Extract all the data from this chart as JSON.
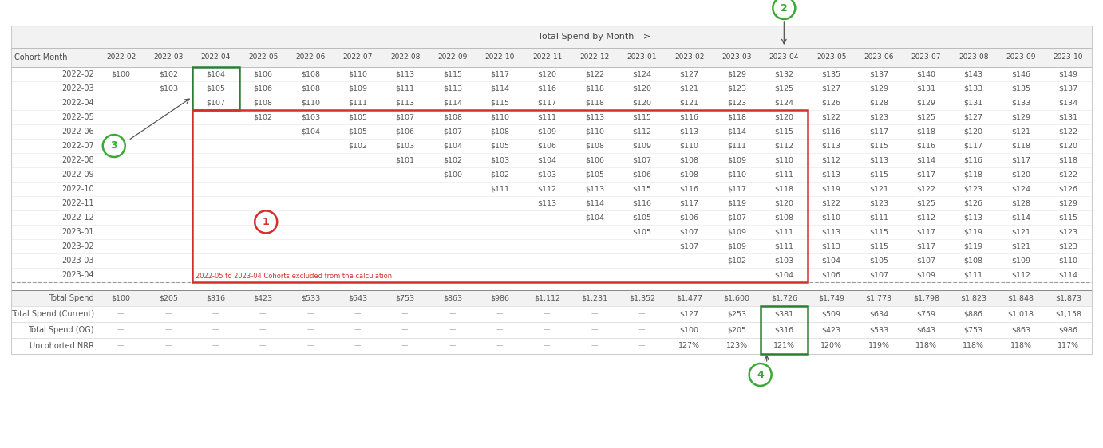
{
  "title_row": "Total Spend by Month -->",
  "col_header": [
    "Cohort Month",
    "2022-02",
    "2022-03",
    "2022-04",
    "2022-05",
    "2022-06",
    "2022-07",
    "2022-08",
    "2022-09",
    "2022-10",
    "2022-11",
    "2022-12",
    "2023-01",
    "2023-02",
    "2023-03",
    "2023-04",
    "2023-05",
    "2023-06",
    "2023-07",
    "2023-08",
    "2023-09",
    "2023-10"
  ],
  "row_labels": [
    "2022-02",
    "2022-03",
    "2022-04",
    "2022-05",
    "2022-06",
    "2022-07",
    "2022-08",
    "2022-09",
    "2022-10",
    "2022-11",
    "2022-12",
    "2023-01",
    "2023-02",
    "2023-03",
    "2023-04"
  ],
  "table_data": [
    [
      "$100",
      "$102",
      "$104",
      "$106",
      "$108",
      "$110",
      "$113",
      "$115",
      "$117",
      "$120",
      "$122",
      "$124",
      "$127",
      "$129",
      "$132",
      "$135",
      "$137",
      "$140",
      "$143",
      "$146",
      "$149"
    ],
    [
      "",
      "$103",
      "$105",
      "$106",
      "$108",
      "$109",
      "$111",
      "$113",
      "$114",
      "$116",
      "$118",
      "$120",
      "$121",
      "$123",
      "$125",
      "$127",
      "$129",
      "$131",
      "$133",
      "$135",
      "$137"
    ],
    [
      "",
      "",
      "$107",
      "$108",
      "$110",
      "$111",
      "$113",
      "$114",
      "$115",
      "$117",
      "$118",
      "$120",
      "$121",
      "$123",
      "$124",
      "$126",
      "$128",
      "$129",
      "$131",
      "$133",
      "$134"
    ],
    [
      "",
      "",
      "",
      "$102",
      "$103",
      "$105",
      "$107",
      "$108",
      "$110",
      "$111",
      "$113",
      "$115",
      "$116",
      "$118",
      "$120",
      "$122",
      "$123",
      "$125",
      "$127",
      "$129",
      "$131"
    ],
    [
      "",
      "",
      "",
      "",
      "$104",
      "$105",
      "$106",
      "$107",
      "$108",
      "$109",
      "$110",
      "$112",
      "$113",
      "$114",
      "$115",
      "$116",
      "$117",
      "$118",
      "$120",
      "$121",
      "$122"
    ],
    [
      "",
      "",
      "",
      "",
      "",
      "$102",
      "$103",
      "$104",
      "$105",
      "$106",
      "$108",
      "$109",
      "$110",
      "$111",
      "$112",
      "$113",
      "$115",
      "$116",
      "$117",
      "$118",
      "$120"
    ],
    [
      "",
      "",
      "",
      "",
      "",
      "",
      "$101",
      "$102",
      "$103",
      "$104",
      "$106",
      "$107",
      "$108",
      "$109",
      "$110",
      "$112",
      "$113",
      "$114",
      "$116",
      "$117",
      "$118"
    ],
    [
      "",
      "",
      "",
      "",
      "",
      "",
      "",
      "$100",
      "$102",
      "$103",
      "$105",
      "$106",
      "$108",
      "$110",
      "$111",
      "$113",
      "$115",
      "$117",
      "$118",
      "$120",
      "$122"
    ],
    [
      "",
      "",
      "",
      "",
      "",
      "",
      "",
      "",
      "$111",
      "$112",
      "$113",
      "$115",
      "$116",
      "$117",
      "$118",
      "$119",
      "$121",
      "$122",
      "$123",
      "$124",
      "$126"
    ],
    [
      "",
      "",
      "",
      "",
      "",
      "",
      "",
      "",
      "",
      "$113",
      "$114",
      "$116",
      "$117",
      "$119",
      "$120",
      "$122",
      "$123",
      "$125",
      "$126",
      "$128",
      "$129"
    ],
    [
      "",
      "",
      "",
      "",
      "",
      "",
      "",
      "",
      "",
      "",
      "$104",
      "$105",
      "$106",
      "$107",
      "$108",
      "$110",
      "$111",
      "$112",
      "$113",
      "$114",
      "$115"
    ],
    [
      "",
      "",
      "",
      "",
      "",
      "",
      "",
      "",
      "",
      "",
      "",
      "$105",
      "$107",
      "$109",
      "$111",
      "$113",
      "$115",
      "$117",
      "$119",
      "$121",
      "$123"
    ],
    [
      "",
      "",
      "",
      "",
      "",
      "",
      "",
      "",
      "",
      "",
      "",
      "",
      "$107",
      "$109",
      "$111",
      "$113",
      "$115",
      "$117",
      "$119",
      "$121",
      "$123"
    ],
    [
      "",
      "",
      "",
      "",
      "",
      "",
      "",
      "",
      "",
      "",
      "",
      "",
      "",
      "$102",
      "$103",
      "$104",
      "$105",
      "$107",
      "$108",
      "$109",
      "$110"
    ],
    [
      "",
      "",
      "",
      "",
      "",
      "",
      "",
      "",
      "",
      "",
      "",
      "",
      "",
      "",
      "$104",
      "$106",
      "$107",
      "$109",
      "$111",
      "$112",
      "$114"
    ]
  ],
  "footer_rows": {
    "Total Spend": [
      "$100",
      "$205",
      "$316",
      "$423",
      "$533",
      "$643",
      "$753",
      "$863",
      "$986",
      "$1,112",
      "$1,231",
      "$1,352",
      "$1,477",
      "$1,600",
      "$1,726",
      "$1,749",
      "$1,773",
      "$1,798",
      "$1,823",
      "$1,848",
      "$1,873"
    ],
    "Total Spend (Current)": [
      "--",
      "--",
      "--",
      "--",
      "--",
      "--",
      "--",
      "--",
      "--",
      "--",
      "--",
      "--",
      "$127",
      "$253",
      "$381",
      "$509",
      "$634",
      "$759",
      "$886",
      "$1,018",
      "$1,158"
    ],
    "Total Spend (OG)": [
      "--",
      "--",
      "--",
      "--",
      "--",
      "--",
      "--",
      "--",
      "--",
      "--",
      "--",
      "--",
      "$100",
      "$205",
      "$316",
      "$423",
      "$533",
      "$643",
      "$753",
      "$863",
      "$986"
    ],
    "Uncohorted NRR": [
      "--",
      "--",
      "--",
      "--",
      "--",
      "--",
      "--",
      "--",
      "--",
      "--",
      "--",
      "--",
      "127%",
      "123%",
      "121%",
      "120%",
      "119%",
      "118%",
      "118%",
      "118%",
      "117%"
    ]
  },
  "annotation_text": "2022-05 to 2023-04 Cohorts excluded from the calculation",
  "bg_color": "#ffffff",
  "header_bg": "#f2f2f2",
  "green_color": "#3aaa35",
  "red_color": "#d32f2f",
  "green_box_color": "#2e7d32",
  "text_color": "#555555",
  "header_text_color": "#444444",
  "dash_color": "#aaaaaa"
}
